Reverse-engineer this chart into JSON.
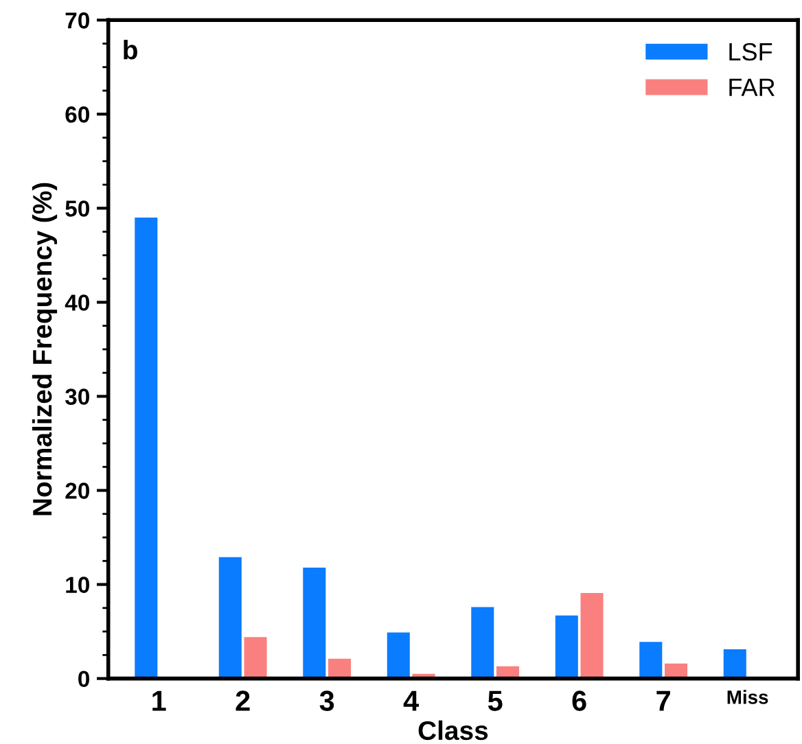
{
  "chart_data": {
    "type": "bar",
    "xlabel": "Class",
    "ylabel": "Normalized Frequency (%)",
    "categories": [
      "1",
      "2",
      "3",
      "4",
      "5",
      "6",
      "7",
      "Miss"
    ],
    "series": [
      {
        "name": "LSF",
        "color": "#0a7cff",
        "values": [
          49.0,
          12.9,
          11.8,
          4.9,
          7.6,
          6.7,
          3.9,
          3.1
        ]
      },
      {
        "name": "FAR",
        "color": "#fa8080",
        "values": [
          null,
          4.4,
          2.1,
          0.5,
          1.3,
          9.1,
          1.6,
          null
        ]
      }
    ],
    "ylim": [
      0,
      70
    ],
    "yticks": [
      0,
      10,
      20,
      30,
      40,
      50,
      60,
      70
    ],
    "annotations": [
      "b"
    ],
    "legend": "top right",
    "grid": false
  }
}
